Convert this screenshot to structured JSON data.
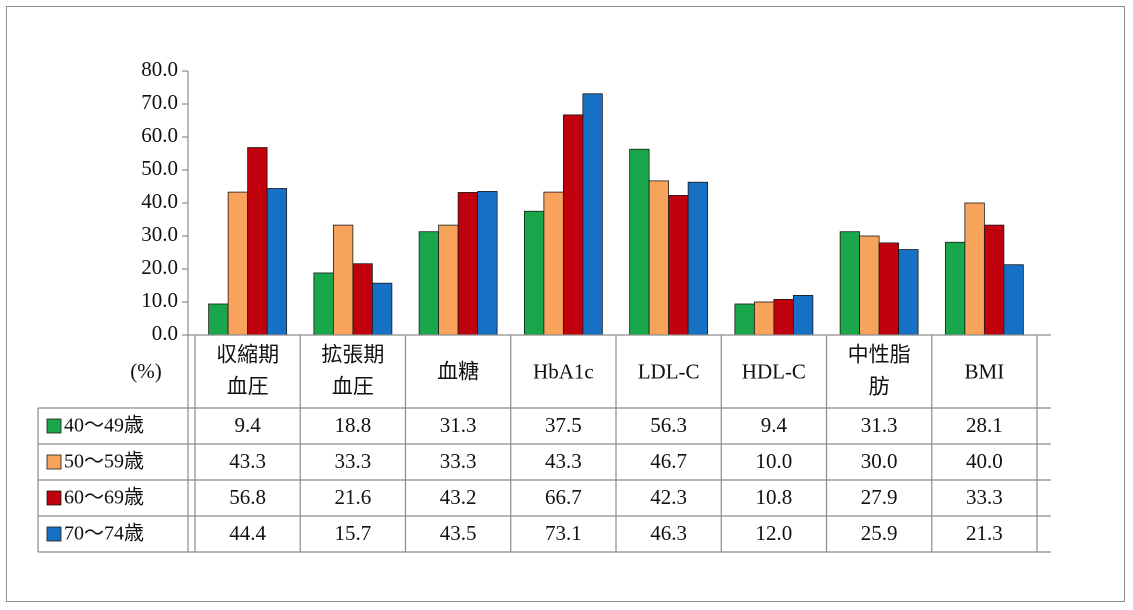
{
  "chart_data": {
    "type": "bar",
    "unit_label": "(%)",
    "ylim": [
      0,
      80
    ],
    "yticks": [
      "80.0",
      "70.0",
      "60.0",
      "50.0",
      "40.0",
      "30.0",
      "20.0",
      "10.0",
      "0.0"
    ],
    "categories": [
      [
        "収縮期",
        "血圧"
      ],
      [
        "拡張期",
        "血圧"
      ],
      [
        "血糖"
      ],
      [
        "HbA1c"
      ],
      [
        "LDL-C"
      ],
      [
        "HDL-C"
      ],
      [
        "中性脂",
        "肪"
      ],
      [
        "BMI"
      ]
    ],
    "series": [
      {
        "name": "40～49歳",
        "color": "#1aa64a",
        "values": [
          9.4,
          18.8,
          31.3,
          37.5,
          56.3,
          9.4,
          31.3,
          28.1
        ],
        "labels": [
          "9.4",
          "18.8",
          "31.3",
          "37.5",
          "56.3",
          "9.4",
          "31.3",
          "28.1"
        ]
      },
      {
        "name": "50～59歳",
        "color": "#f7a35c",
        "values": [
          43.3,
          33.3,
          33.3,
          43.3,
          46.7,
          10.0,
          30.0,
          40.0
        ],
        "labels": [
          "43.3",
          "33.3",
          "33.3",
          "43.3",
          "46.7",
          "10.0",
          "30.0",
          "40.0"
        ]
      },
      {
        "name": "60～69歳",
        "color": "#c0000c",
        "values": [
          56.8,
          21.6,
          43.2,
          66.7,
          42.3,
          10.8,
          27.9,
          33.3
        ],
        "labels": [
          "56.8",
          "21.6",
          "43.2",
          "66.7",
          "42.3",
          "10.8",
          "27.9",
          "33.3"
        ]
      },
      {
        "name": "70～74歳",
        "color": "#1670c4",
        "values": [
          44.4,
          15.7,
          43.5,
          73.1,
          46.3,
          12.0,
          25.9,
          21.3
        ],
        "labels": [
          "44.4",
          "15.7",
          "43.5",
          "73.1",
          "46.3",
          "12.0",
          "25.9",
          "21.3"
        ]
      }
    ],
    "grid": false,
    "legend": "data-table"
  }
}
